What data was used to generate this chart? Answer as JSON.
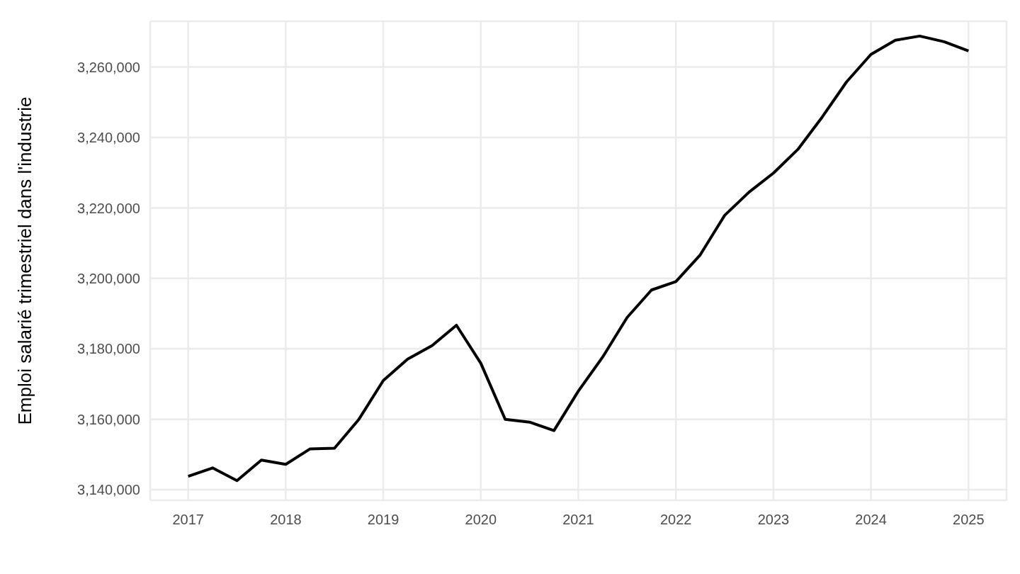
{
  "chart_data": {
    "type": "line",
    "ylabel": "Emploi salarié trimestriel dans l'industrie",
    "x": [
      2017,
      2017.25,
      2017.5,
      2017.75,
      2018,
      2018.25,
      2018.5,
      2018.75,
      2019,
      2019.25,
      2019.5,
      2019.75,
      2020,
      2020.25,
      2020.5,
      2020.75,
      2021,
      2021.25,
      2021.5,
      2021.75,
      2022,
      2022.25,
      2022.5,
      2022.75,
      2023,
      2023.25,
      2023.5,
      2023.75,
      2024,
      2024.25,
      2024.5,
      2024.75,
      2025
    ],
    "series": [
      {
        "color": "#000000",
        "values": [
          3143800,
          3146200,
          3142600,
          3148400,
          3147200,
          3151600,
          3151800,
          3160000,
          3171000,
          3177100,
          3180900,
          3186700,
          3175900,
          3160000,
          3159200,
          3156800,
          3168000,
          3177700,
          3188900,
          3196700,
          3199100,
          3206700,
          3217900,
          3224500,
          3229900,
          3236600,
          3245800,
          3255800,
          3263600,
          3267600,
          3268800,
          3267200,
          3264600
        ]
      }
    ],
    "xlim": [
      2016.61,
      2025.39
    ],
    "xticks": [
      2017,
      2018,
      2019,
      2020,
      2021,
      2022,
      2023,
      2024,
      2025
    ],
    "ylim": [
      3137000,
      3273000
    ],
    "yticks": [
      {
        "value": 3140000,
        "label": "3,140,000"
      },
      {
        "value": 3160000,
        "label": "3,160,000"
      },
      {
        "value": 3180000,
        "label": "3,180,000"
      },
      {
        "value": 3200000,
        "label": "3,200,000"
      },
      {
        "value": 3220000,
        "label": "3,220,000"
      },
      {
        "value": 3240000,
        "label": "3,240,000"
      },
      {
        "value": 3260000,
        "label": "3,260,000"
      }
    ],
    "grid": true,
    "legend": false,
    "marker": "none",
    "line_style": "solid"
  }
}
